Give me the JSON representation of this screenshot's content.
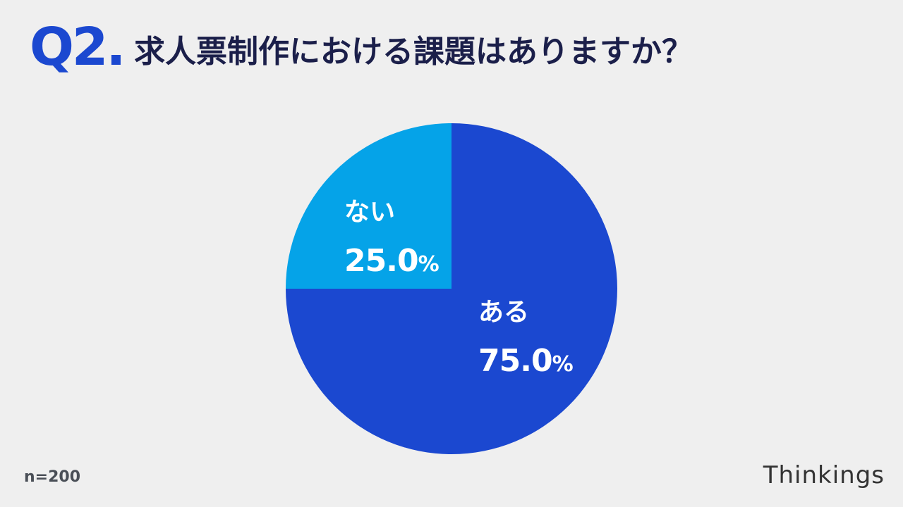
{
  "header": {
    "question_number": "Q2.",
    "question_text": "求人票制作における課題はありますか？"
  },
  "footer": {
    "sample_size": "n=200",
    "brand": "Thinkings"
  },
  "colors": {
    "accent": "#1b48d0",
    "title_text": "#1b1f4a",
    "background": "#efefef"
  },
  "chart_data": {
    "type": "pie",
    "slices": [
      {
        "label": "ある",
        "value": 75.0,
        "display": "75.0",
        "unit": "%",
        "color": "#1b48d0"
      },
      {
        "label": "ない",
        "value": 25.0,
        "display": "25.0",
        "unit": "%",
        "color": "#05a3e8"
      }
    ],
    "start": "12 o'clock",
    "direction": "clockwise",
    "legend": "none"
  }
}
